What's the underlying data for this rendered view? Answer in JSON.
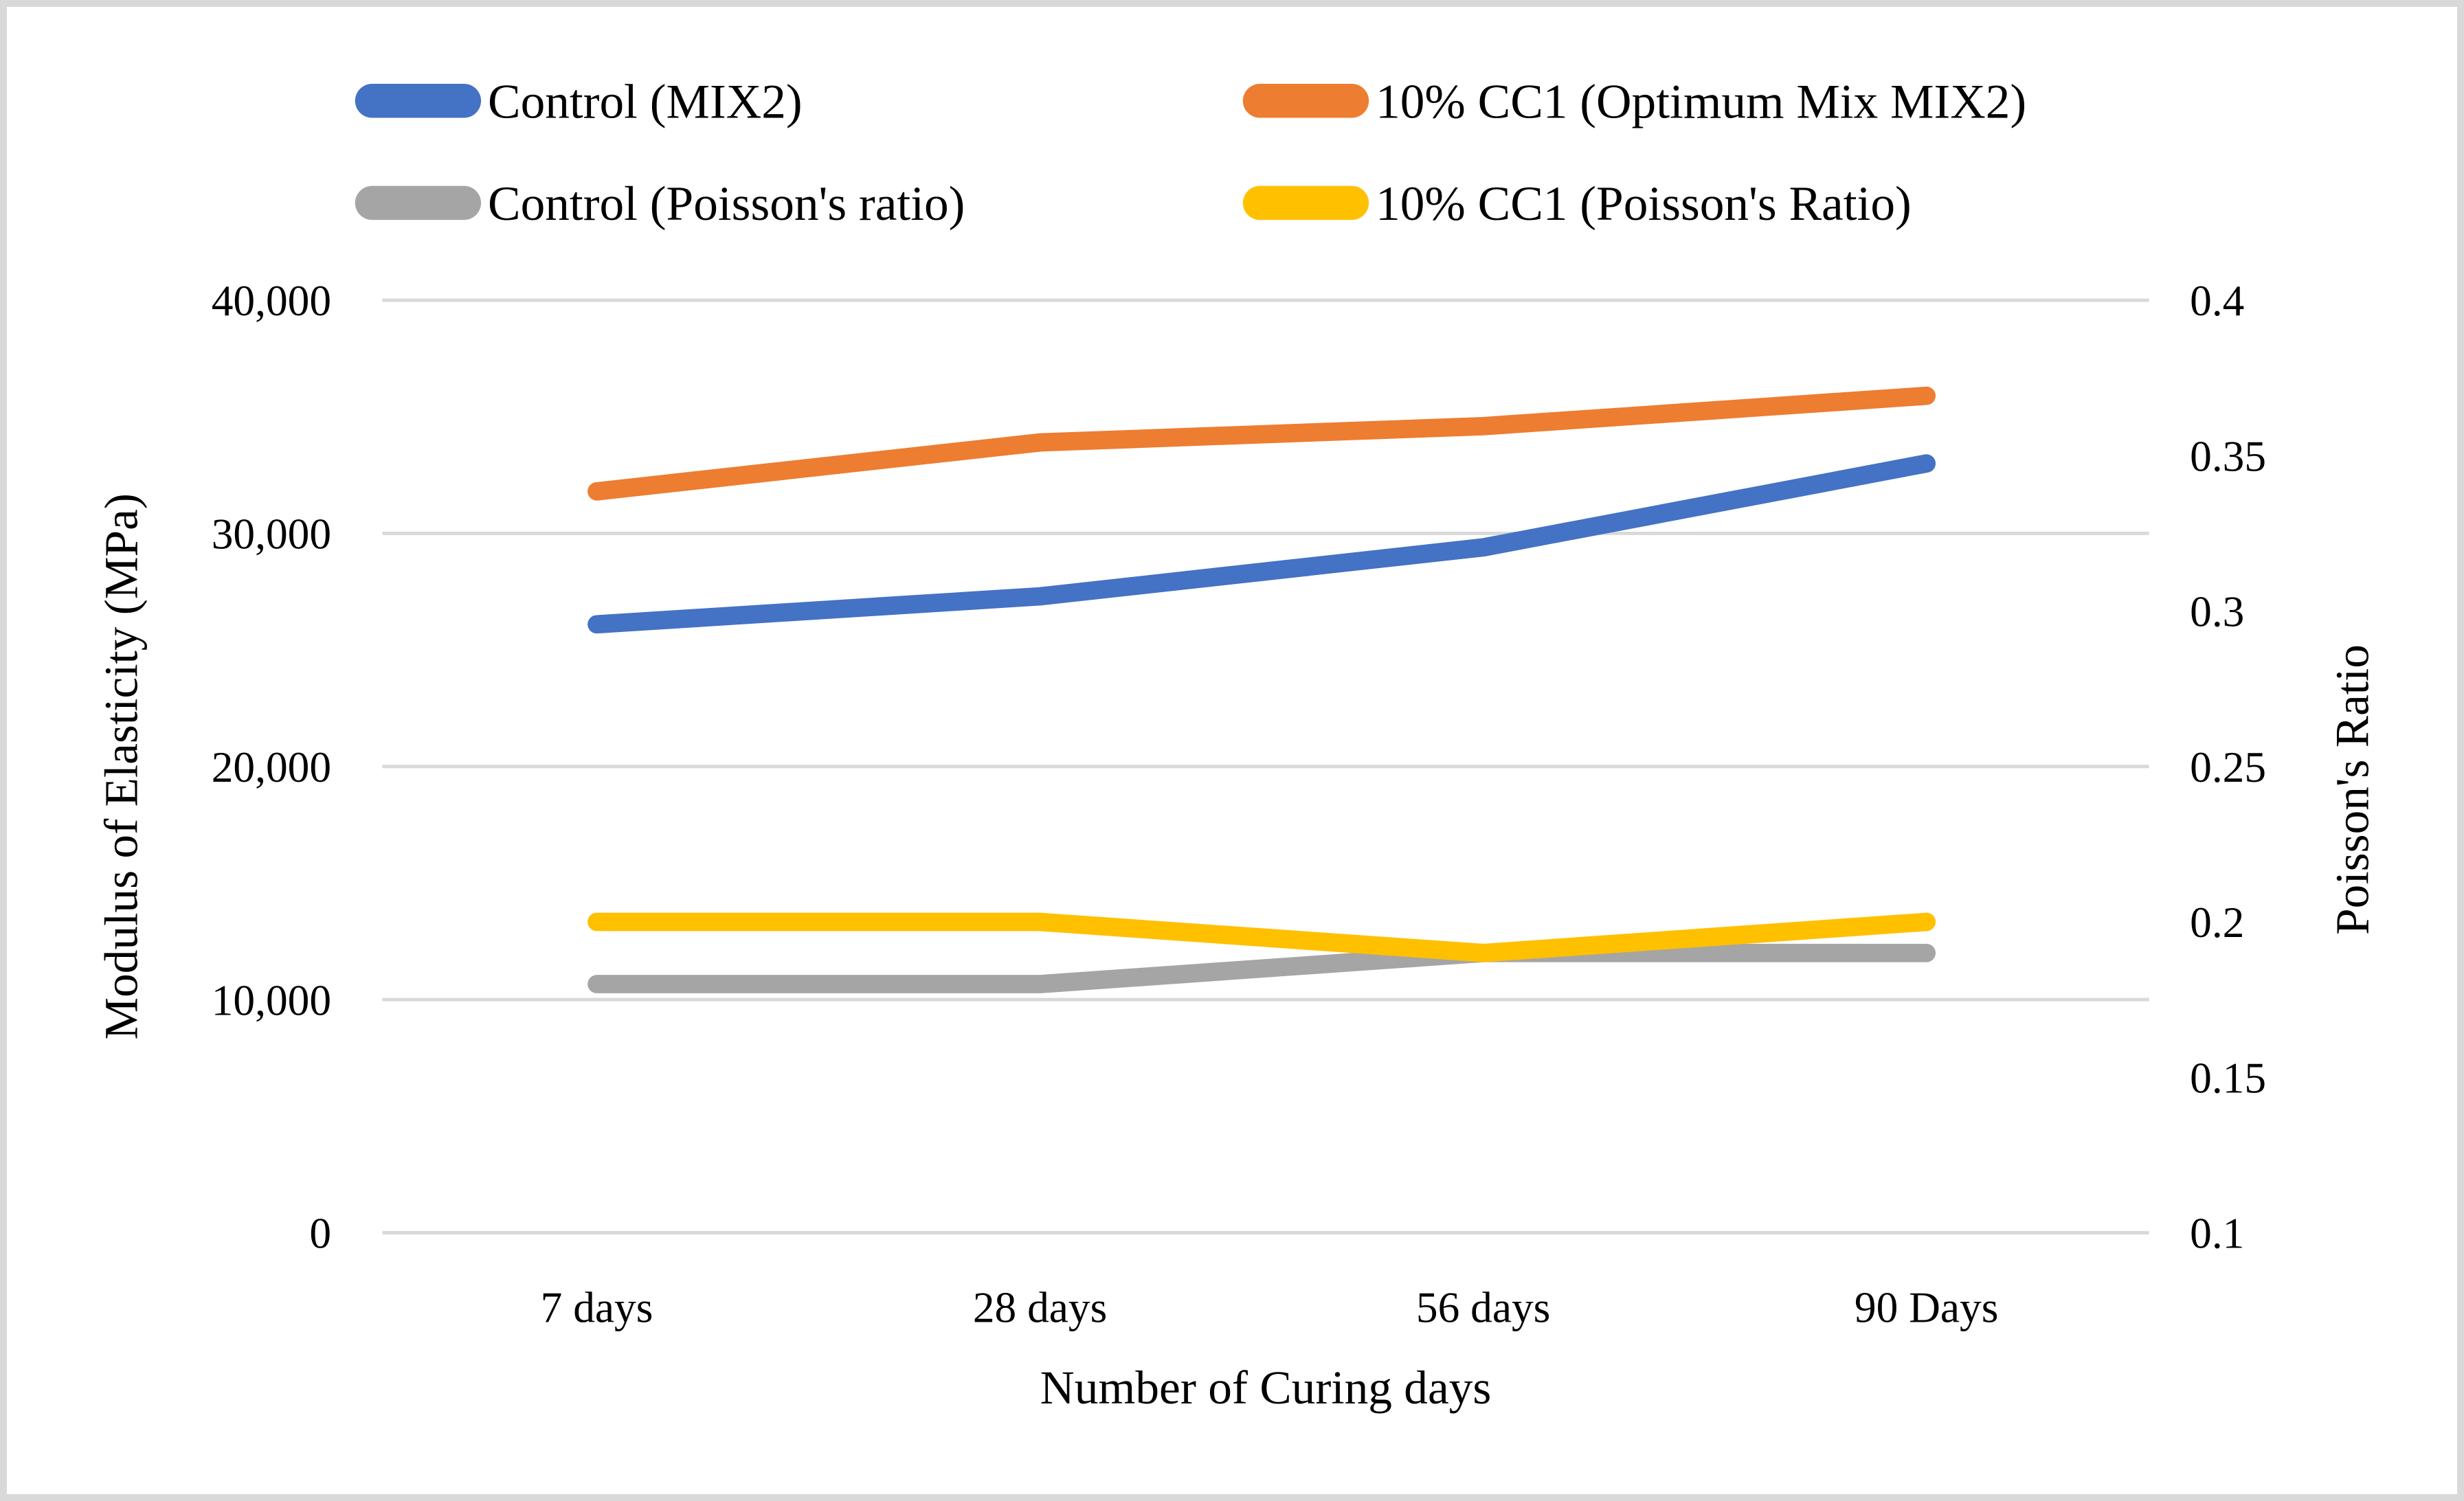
{
  "figure": {
    "background": "#ffffff",
    "border_color": "#d9d9d9",
    "gridline_color": "#d9d9d9",
    "text_color": "#000000"
  },
  "legend": {
    "position": "top",
    "items": [
      {
        "label": "Control (MIX2)",
        "color": "#4472C4",
        "row": 0,
        "col": 0,
        "marker": "line-swatch"
      },
      {
        "label": "10% CC1 (Optimum Mix MIX2)",
        "color": "#ED7D31",
        "row": 0,
        "col": 1,
        "marker": "line-swatch"
      },
      {
        "label": "Control (Poisson's ratio)",
        "color": "#A5A5A5",
        "row": 1,
        "col": 0,
        "marker": "line-swatch"
      },
      {
        "label": "10% CC1 (Poisson's Ratio)",
        "color": "#FFC000",
        "row": 1,
        "col": 1,
        "marker": "line-swatch"
      }
    ]
  },
  "chart_data": {
    "type": "line",
    "categories": [
      "7 days",
      "28 days",
      "56 days",
      "90 Days"
    ],
    "series": [
      {
        "name": "Control (MIX2)",
        "axis": "left",
        "color": "#4472C4",
        "values": [
          26100,
          27300,
          29400,
          33000
        ]
      },
      {
        "name": "10% CC1 (Optimum Mix MIX2)",
        "axis": "left",
        "color": "#ED7D31",
        "values": [
          31800,
          33900,
          34600,
          35900
        ]
      },
      {
        "name": "Control (Poisson's ratio)",
        "axis": "right",
        "color": "#A5A5A5",
        "values": [
          0.18,
          0.18,
          0.19,
          0.19
        ]
      },
      {
        "name": "10% CC1 (Poisson's Ratio)",
        "axis": "right",
        "color": "#FFC000",
        "values": [
          0.2,
          0.2,
          0.19,
          0.2
        ]
      }
    ],
    "left_axis": {
      "title": "Modulus of Elasticity (MPa)",
      "min": 0,
      "max": 40000,
      "tick_step": 10000,
      "tick_labels_top_to_bottom": [
        "40,000",
        "30,000",
        "20,000",
        "10,000",
        "0"
      ]
    },
    "right_axis": {
      "title": "Poisson's Ratio",
      "min": 0.1,
      "max": 0.4,
      "tick_step": 0.05,
      "tick_labels_top_to_bottom": [
        "0.4",
        "0.35",
        "0.3",
        "0.25",
        "0.2",
        "0.15",
        "0.1"
      ]
    },
    "x_axis": {
      "title": "Number of Curing days"
    },
    "grid": "horizontal-only",
    "legend_position": "top"
  }
}
